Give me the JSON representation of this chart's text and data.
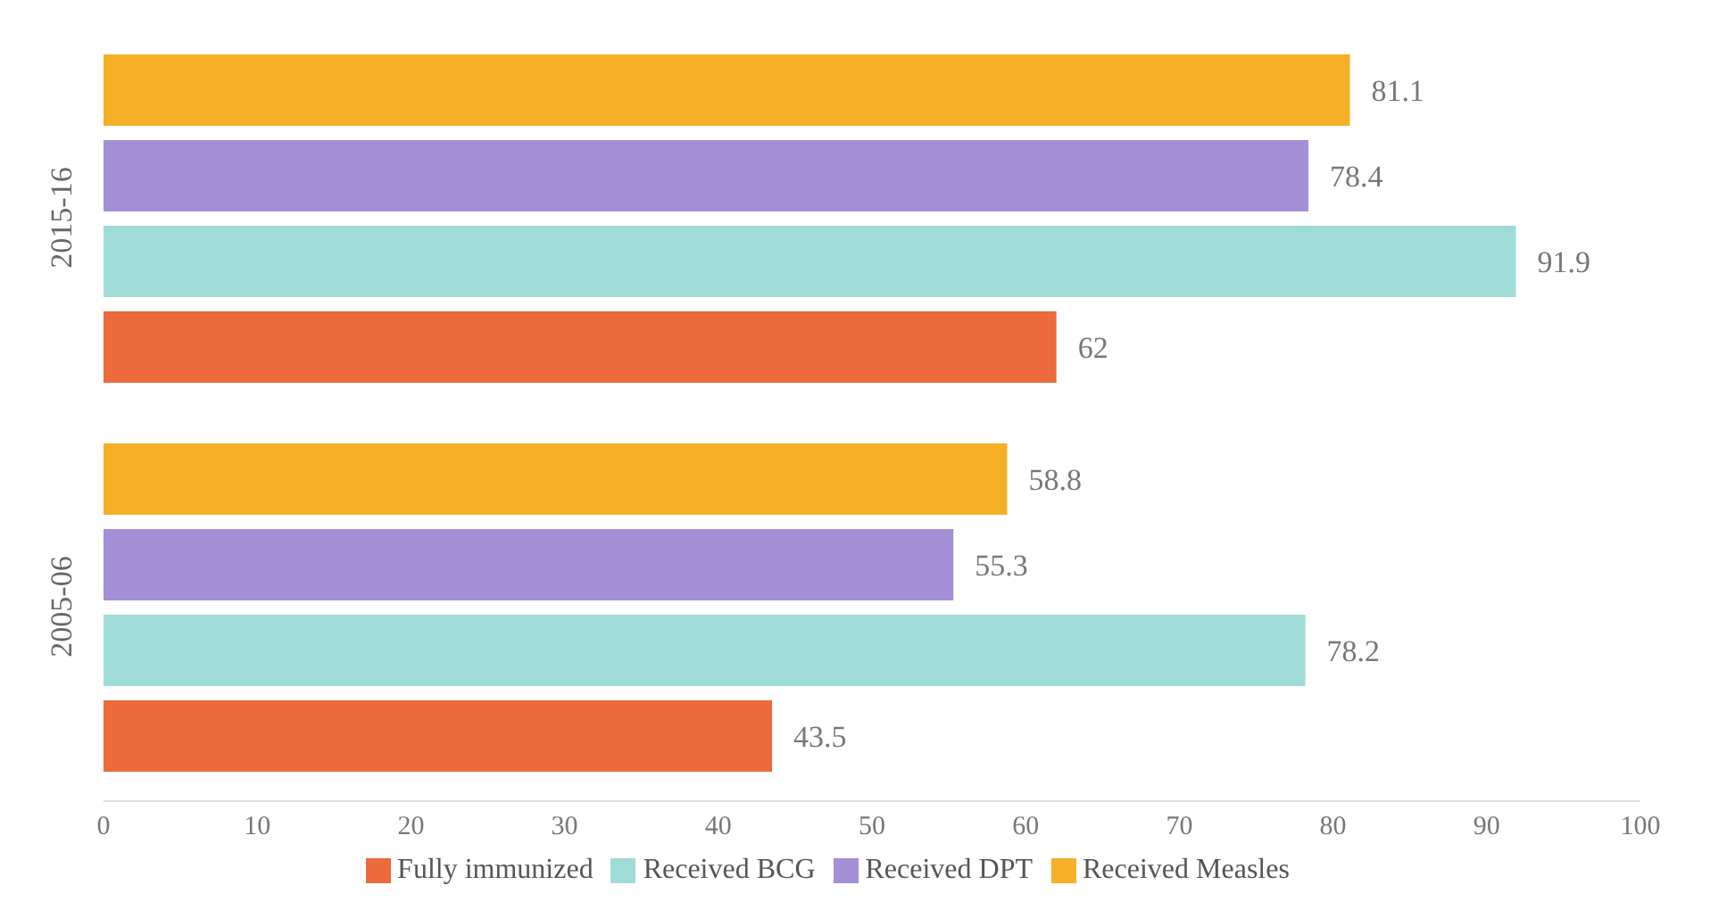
{
  "chart_data": {
    "type": "bar",
    "orientation": "horizontal",
    "categories": [
      "2015-16",
      "2005-06"
    ],
    "series": [
      {
        "name": "Received Measles",
        "color": "#f5b027",
        "values": [
          81.1,
          58.8
        ]
      },
      {
        "name": "Received DPT",
        "color": "#a58fd6",
        "values": [
          78.4,
          55.3
        ]
      },
      {
        "name": "Received BCG",
        "color": "#9fdcd8",
        "values": [
          91.9,
          78.2
        ]
      },
      {
        "name": "Fully immunized",
        "color": "#ec6a3c",
        "values": [
          62,
          43.5
        ]
      }
    ],
    "xlim": [
      0,
      100
    ],
    "xticks": [
      0,
      10,
      20,
      30,
      40,
      50,
      60,
      70,
      80,
      90,
      100
    ],
    "data_labels": true,
    "legend": "bottom",
    "grid": false
  }
}
